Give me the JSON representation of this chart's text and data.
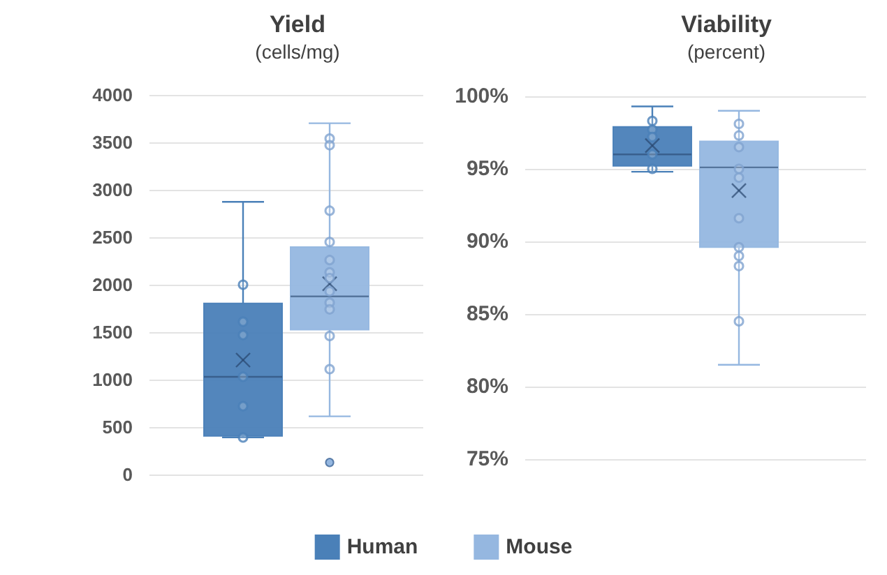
{
  "chart_data": [
    {
      "type": "box",
      "title": "Yield",
      "subtitle": "(cells/mg)",
      "categories": [
        null
      ],
      "ylim": [
        0,
        4000
      ],
      "yticks": [
        0,
        500,
        1000,
        1500,
        2000,
        2500,
        3000,
        3500,
        4000
      ],
      "grid": "y",
      "legend": "bottom",
      "marker": "circle",
      "series": [
        {
          "name": "Human",
          "color": "#4a80b8",
          "boxes": [
            {
              "low": 392,
              "q1": 407,
              "median": 1029,
              "q3": 1804,
              "high": 2873,
              "mean": 1206
            }
          ]
        },
        {
          "name": "Mouse",
          "color": "#95b7e0",
          "boxes": [
            {
              "low": 613,
              "q1": 1525,
              "median": 1877,
              "q3": 2397,
              "high": 3701,
              "mean": 2010,
              "outliers": [
                127
              ]
            }
          ]
        },
        {
          "type": "scatter",
          "color": "#4a80b8",
          "x": [
            null,
            null,
            null,
            null,
            null,
            null
          ],
          "values": [
            2000,
            1610,
            1470,
            1030,
            720,
            390
          ]
        },
        {
          "type": "scatter",
          "color": "#7fa3d0",
          "x": [
            null,
            null,
            null,
            null,
            null,
            null,
            null,
            null,
            null,
            null,
            null,
            null
          ],
          "values": [
            3540,
            3470,
            2780,
            2450,
            2260,
            2130,
            2070,
            1930,
            1810,
            1740,
            1460,
            1110
          ]
        }
      ]
    },
    {
      "type": "box",
      "title": "Viability",
      "subtitle": "(percent)",
      "categories": [
        null
      ],
      "ylim": [
        75,
        100
      ],
      "yticks": [
        {
          "value": 75,
          "label": "75%"
        },
        {
          "value": 80,
          "label": "80%"
        },
        {
          "value": 85,
          "label": "85%"
        },
        {
          "value": 90,
          "label": "90%"
        },
        {
          "value": 95,
          "label": "95%"
        },
        {
          "value": 100,
          "label": "100%"
        }
      ],
      "grid": "y",
      "marker": "circle",
      "series": [
        {
          "color": "#4a80b8",
          "boxes": [
            {
              "low": 94.8,
              "q1": 95.2,
              "median": 96.0,
              "q3": 97.9,
              "high": 99.3,
              "mean": 96.6
            }
          ]
        },
        {
          "color": "#95b7e0",
          "boxes": [
            {
              "low": 81.5,
              "q1": 89.6,
              "median": 95.1,
              "q3": 96.9,
              "high": 99.0,
              "mean": 93.5
            }
          ]
        },
        {
          "type": "scatter",
          "color": "#4a80b8",
          "x": [
            null,
            null,
            null,
            null,
            null
          ],
          "values": [
            98.3,
            97.7,
            97.2,
            96.0,
            95.0
          ]
        },
        {
          "type": "scatter",
          "color": "#7fa3d0",
          "x": [
            null,
            null,
            null,
            null,
            null,
            null,
            null,
            null,
            null,
            null
          ],
          "values": [
            98.1,
            97.3,
            96.5,
            95.0,
            94.4,
            91.6,
            89.6,
            89.0,
            88.3,
            84.5
          ]
        }
      ]
    }
  ]
}
